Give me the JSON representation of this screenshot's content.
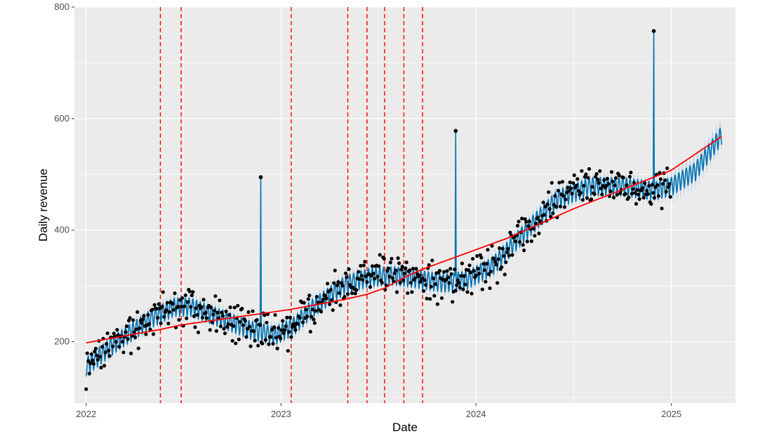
{
  "chart_data": {
    "type": "line",
    "title": "",
    "xlabel": "Date",
    "ylabel": "Daily revenue",
    "x_ticks": [
      "2022",
      "2023",
      "2024",
      "2025"
    ],
    "y_ticks": [
      200,
      400,
      600,
      800
    ],
    "xlim": [
      "2021-12-10",
      "2025-05-01"
    ],
    "ylim": [
      90,
      800
    ],
    "grid": true,
    "legend": "none",
    "colors": {
      "panel_background": "#ebebeb",
      "gridline": "#ffffff",
      "forecast": "#0072b2",
      "interval": "#b3cde3",
      "observed": "#000000",
      "trend": "#ff0000",
      "changepoint": "#ff0000"
    },
    "changepoints": [
      "2022-05-20",
      "2022-06-28",
      "2023-01-20",
      "2023-05-06",
      "2023-06-11",
      "2023-07-14",
      "2023-08-19",
      "2023-09-23"
    ],
    "trend": [
      {
        "x": "2022-01-01",
        "y": 198
      },
      {
        "x": "2022-05-20",
        "y": 222
      },
      {
        "x": "2022-06-28",
        "y": 230
      },
      {
        "x": "2023-01-20",
        "y": 258
      },
      {
        "x": "2023-05-06",
        "y": 277
      },
      {
        "x": "2023-06-11",
        "y": 285
      },
      {
        "x": "2023-07-14",
        "y": 296
      },
      {
        "x": "2023-08-19",
        "y": 315
      },
      {
        "x": "2023-09-23",
        "y": 330
      },
      {
        "x": "2024-03-01",
        "y": 386
      },
      {
        "x": "2024-07-01",
        "y": 438
      },
      {
        "x": "2024-12-31",
        "y": 507
      },
      {
        "x": "2025-04-05",
        "y": 568
      }
    ],
    "forecast_center": [
      {
        "x": "2022-01-01",
        "y": 155
      },
      {
        "x": "2022-03-01",
        "y": 200
      },
      {
        "x": "2022-05-01",
        "y": 240
      },
      {
        "x": "2022-06-15",
        "y": 262
      },
      {
        "x": "2022-07-15",
        "y": 262
      },
      {
        "x": "2022-09-01",
        "y": 245
      },
      {
        "x": "2022-11-01",
        "y": 222
      },
      {
        "x": "2022-12-20",
        "y": 210
      },
      {
        "x": "2023-01-25",
        "y": 228
      },
      {
        "x": "2023-03-01",
        "y": 260
      },
      {
        "x": "2023-05-01",
        "y": 302
      },
      {
        "x": "2023-06-15",
        "y": 315
      },
      {
        "x": "2023-08-01",
        "y": 318
      },
      {
        "x": "2023-09-15",
        "y": 312
      },
      {
        "x": "2023-11-01",
        "y": 305
      },
      {
        "x": "2023-12-15",
        "y": 310
      },
      {
        "x": "2024-02-01",
        "y": 335
      },
      {
        "x": "2024-04-01",
        "y": 395
      },
      {
        "x": "2024-06-01",
        "y": 455
      },
      {
        "x": "2024-08-01",
        "y": 478
      },
      {
        "x": "2024-10-01",
        "y": 478
      },
      {
        "x": "2024-12-01",
        "y": 470
      },
      {
        "x": "2025-01-01",
        "y": 478
      },
      {
        "x": "2025-02-15",
        "y": 505
      },
      {
        "x": "2025-04-05",
        "y": 570
      }
    ],
    "daily_amplitude": 17,
    "interval_halfwidth": 10,
    "forecast_end": "2025-04-05",
    "observed_end": "2024-12-31",
    "outliers": [
      {
        "x": "2022-11-24",
        "y": 495
      },
      {
        "x": "2023-11-24",
        "y": 578
      },
      {
        "x": "2024-11-29",
        "y": 757
      }
    ]
  }
}
